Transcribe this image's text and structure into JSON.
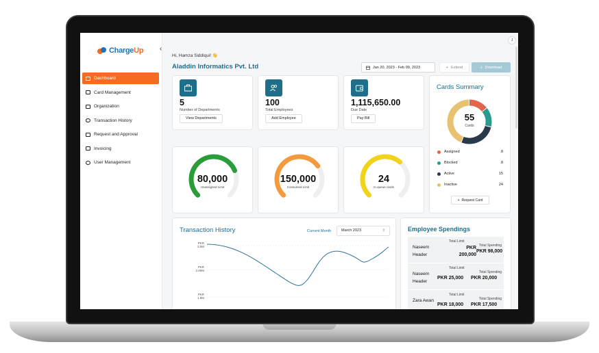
{
  "brand": {
    "part1": "Charge",
    "part2": "Up"
  },
  "sidebar": {
    "collapse_glyph": "‹",
    "items": [
      {
        "label": "Dashboard",
        "active": true
      },
      {
        "label": "Card Management"
      },
      {
        "label": "Organization"
      },
      {
        "label": "Transaction History"
      },
      {
        "label": "Request and Approval"
      },
      {
        "label": "Invoicing"
      },
      {
        "label": "User Management"
      }
    ]
  },
  "header": {
    "avatar_initial": "J",
    "greeting": "Hi, Hamza Siddiqui! 👋",
    "company": "Aladdin Informatics Pvt. Ltd",
    "date_range": "Jan 20, 2023 - Feb 09, 2023",
    "extend_label": "Extend",
    "download_label": "Download"
  },
  "stats": [
    {
      "value": "5",
      "label": "Number of Departments",
      "button": "View Departments",
      "icon": "briefcase-icon"
    },
    {
      "value": "100",
      "label": "Total Employees",
      "button": "Add Employee",
      "icon": "users-icon"
    },
    {
      "value": "1,115,650.00",
      "label": "Due Date",
      "button": "Pay Bill",
      "icon": "wallet-icon"
    }
  ],
  "gauges": [
    {
      "value": "80,000",
      "label": "Unassigned Limit",
      "color": "#2a9d3a",
      "fraction": 0.75
    },
    {
      "value": "150,000",
      "label": "Consumed Limit",
      "color": "#f39a3c",
      "fraction": 0.7
    },
    {
      "value": "24",
      "label": "In queue cards",
      "color": "#f2d31b",
      "fraction": 0.65
    }
  ],
  "cards_summary": {
    "title": "Cards Summary",
    "total": "55",
    "total_label": "Cards",
    "legend": [
      {
        "name": "Assigned",
        "count": "8",
        "color": "#e0654a"
      },
      {
        "name": "Blocked",
        "count": "8",
        "color": "#2a9a8f"
      },
      {
        "name": "Active",
        "count": "15",
        "color": "#2b3a4a"
      },
      {
        "name": "Inactive",
        "count": "24",
        "color": "#e8c270"
      }
    ],
    "request_label": "Request Card"
  },
  "transaction_history": {
    "title": "Transaction History",
    "period_label": "Current Month",
    "month": "March 2023",
    "y_labels": [
      {
        "line1": "PKR",
        "line2": "3.5M"
      },
      {
        "line1": "PKR",
        "line2": "2.65M"
      },
      {
        "line1": "PKR",
        "line2": "1.9M"
      }
    ],
    "line_color": "#2a6f9a"
  },
  "employee_spendings": {
    "title": "Employee Spendings",
    "total_limit_label": "Total Limit",
    "total_spending_label": "Total Spending",
    "rows": [
      {
        "name": "Naseem Header",
        "limit": "PKR 200,000",
        "spending": "PKR 98,000"
      },
      {
        "name": "Naseem Header",
        "limit": "PKR 25,000",
        "spending": "PKR 20,000"
      },
      {
        "name": "Zara Awan",
        "limit": "PKR 18,000",
        "spending": "PKR 17,500"
      }
    ]
  }
}
